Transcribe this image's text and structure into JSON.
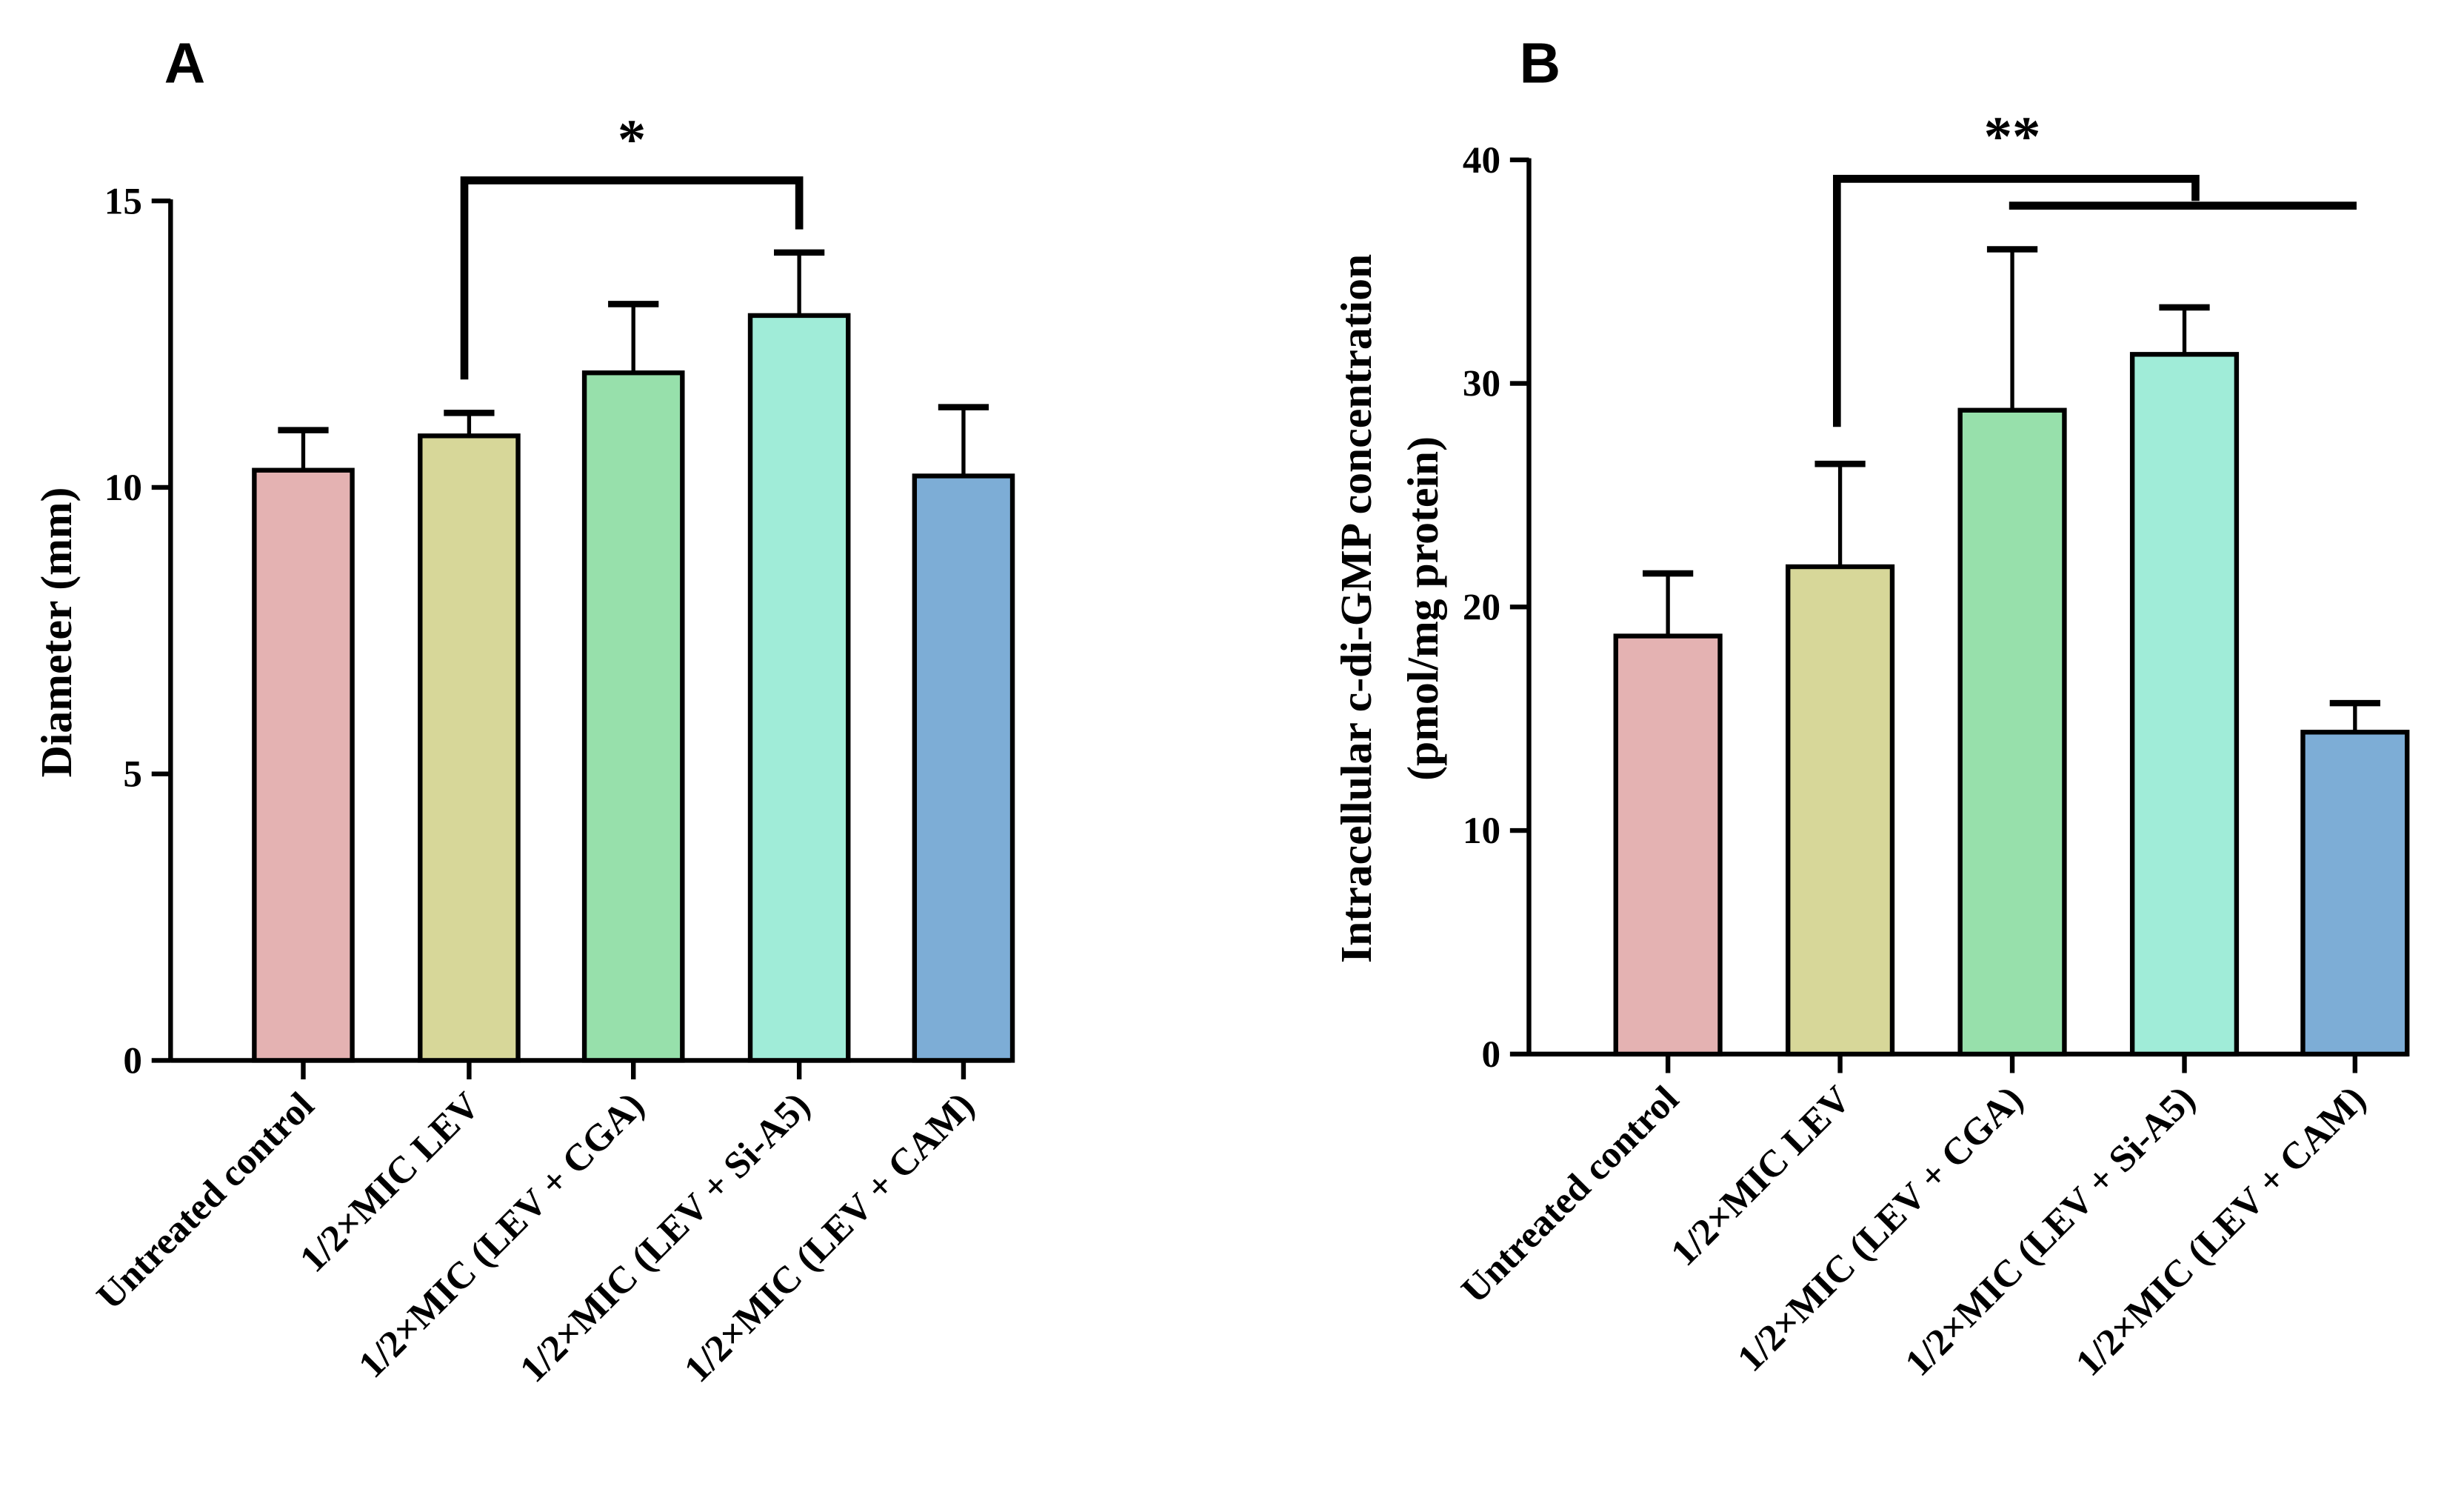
{
  "chart_data": [
    {
      "type": "bar",
      "panel_label": "A",
      "title": "",
      "xlabel": "",
      "ylabel": "Diameter (mm)",
      "ylim": [
        0,
        15
      ],
      "yticks": [
        0,
        5,
        10,
        15
      ],
      "categories": [
        "Untreated control",
        "1/2×MIC LEV",
        "1/2×MIC (LEV + CGA)",
        "1/2×MIC (LEV + Si-A5)",
        "1/2×MIC (LEV + CAM)"
      ],
      "values": [
        10.3,
        10.9,
        12.0,
        13.0,
        10.2
      ],
      "error_upper": [
        11.0,
        11.3,
        13.2,
        14.1,
        11.4
      ],
      "colors": [
        "#e4b2b2",
        "#d7d799",
        "#97e0ab",
        "#a0ecd8",
        "#7dadd6"
      ],
      "significance": [
        {
          "from": 1,
          "to": 3,
          "label": "*"
        }
      ]
    },
    {
      "type": "bar",
      "panel_label": "B",
      "title": "",
      "xlabel": "",
      "ylabel": "Intracellular c-di-GMP concentration",
      "ylabel2": "(pmol/mg protein)",
      "ylim": [
        0,
        40
      ],
      "yticks": [
        0,
        10,
        20,
        30,
        40
      ],
      "categories": [
        "Untreated control",
        "1/2×MIC LEV",
        "1/2×MIC (LEV + CGA)",
        "1/2×MIC (LEV + Si-A5)",
        "1/2×MIC (LEV + CAM)"
      ],
      "values": [
        18.7,
        21.8,
        28.8,
        31.3,
        14.4
      ],
      "error_upper": [
        21.5,
        26.4,
        36.0,
        33.4,
        15.7
      ],
      "colors": [
        "#e4b2b2",
        "#d7d799",
        "#97e0ab",
        "#a0ecd8",
        "#7dadd6"
      ],
      "significance": [
        {
          "from": 1,
          "to_group": [
            2,
            4
          ],
          "label": "**"
        }
      ]
    }
  ]
}
